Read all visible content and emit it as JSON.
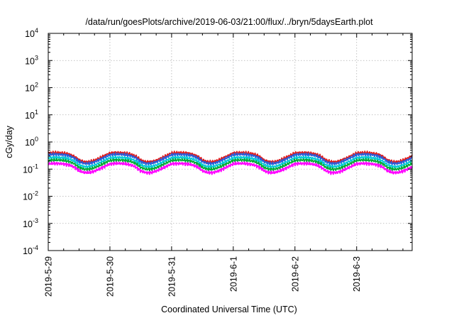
{
  "chart_data": {
    "type": "line",
    "title": "/data/run/goesPlots/archive/2019-06-03/21:00/flux/../bryn/5daysEarth.plot",
    "xlabel": "Coordinated Universal Time (UTC)",
    "ylabel": "cGy/day",
    "yscale": "log",
    "ylim": [
      0.0001,
      10000
    ],
    "xlim_days": [
      0,
      5.9
    ],
    "grid": true,
    "x_ticks": [
      {
        "day": 0,
        "label": "2019-5-29"
      },
      {
        "day": 1,
        "label": "2019-5-30"
      },
      {
        "day": 2,
        "label": "2019-5-31"
      },
      {
        "day": 3,
        "label": "2019-6-1"
      },
      {
        "day": 4,
        "label": "2019-6-2"
      },
      {
        "day": 5,
        "label": "2019-6-3"
      }
    ],
    "y_ticks": [
      {
        "value": 0.0001,
        "base": "10",
        "exp": "-4"
      },
      {
        "value": 0.001,
        "base": "10",
        "exp": "-3"
      },
      {
        "value": 0.01,
        "base": "10",
        "exp": "-2"
      },
      {
        "value": 0.1,
        "base": "10",
        "exp": "-1"
      },
      {
        "value": 1,
        "base": "10",
        "exp": "0"
      },
      {
        "value": 10,
        "base": "10",
        "exp": "1"
      },
      {
        "value": 100,
        "base": "10",
        "exp": "2"
      },
      {
        "value": 1000,
        "base": "10",
        "exp": "3"
      },
      {
        "value": 10000,
        "base": "10",
        "exp": "4"
      }
    ],
    "day_profile": {
      "hours": [
        0,
        2,
        4,
        6,
        8,
        10,
        12,
        14,
        16,
        18,
        20,
        22,
        24
      ],
      "factor": [
        1.3,
        1.35,
        1.35,
        1.3,
        1.2,
        1.0,
        0.72,
        0.62,
        0.62,
        0.7,
        0.85,
        1.05,
        1.3
      ]
    },
    "series": [
      {
        "color": "#e01b1b",
        "level": 0.3
      },
      {
        "color": "#2a5bd7",
        "level": 0.26
      },
      {
        "color": "#00c8d8",
        "level": 0.2
      },
      {
        "color": "#00aa33",
        "level": 0.16
      },
      {
        "color": "#ff00ff",
        "level": 0.12
      }
    ]
  }
}
